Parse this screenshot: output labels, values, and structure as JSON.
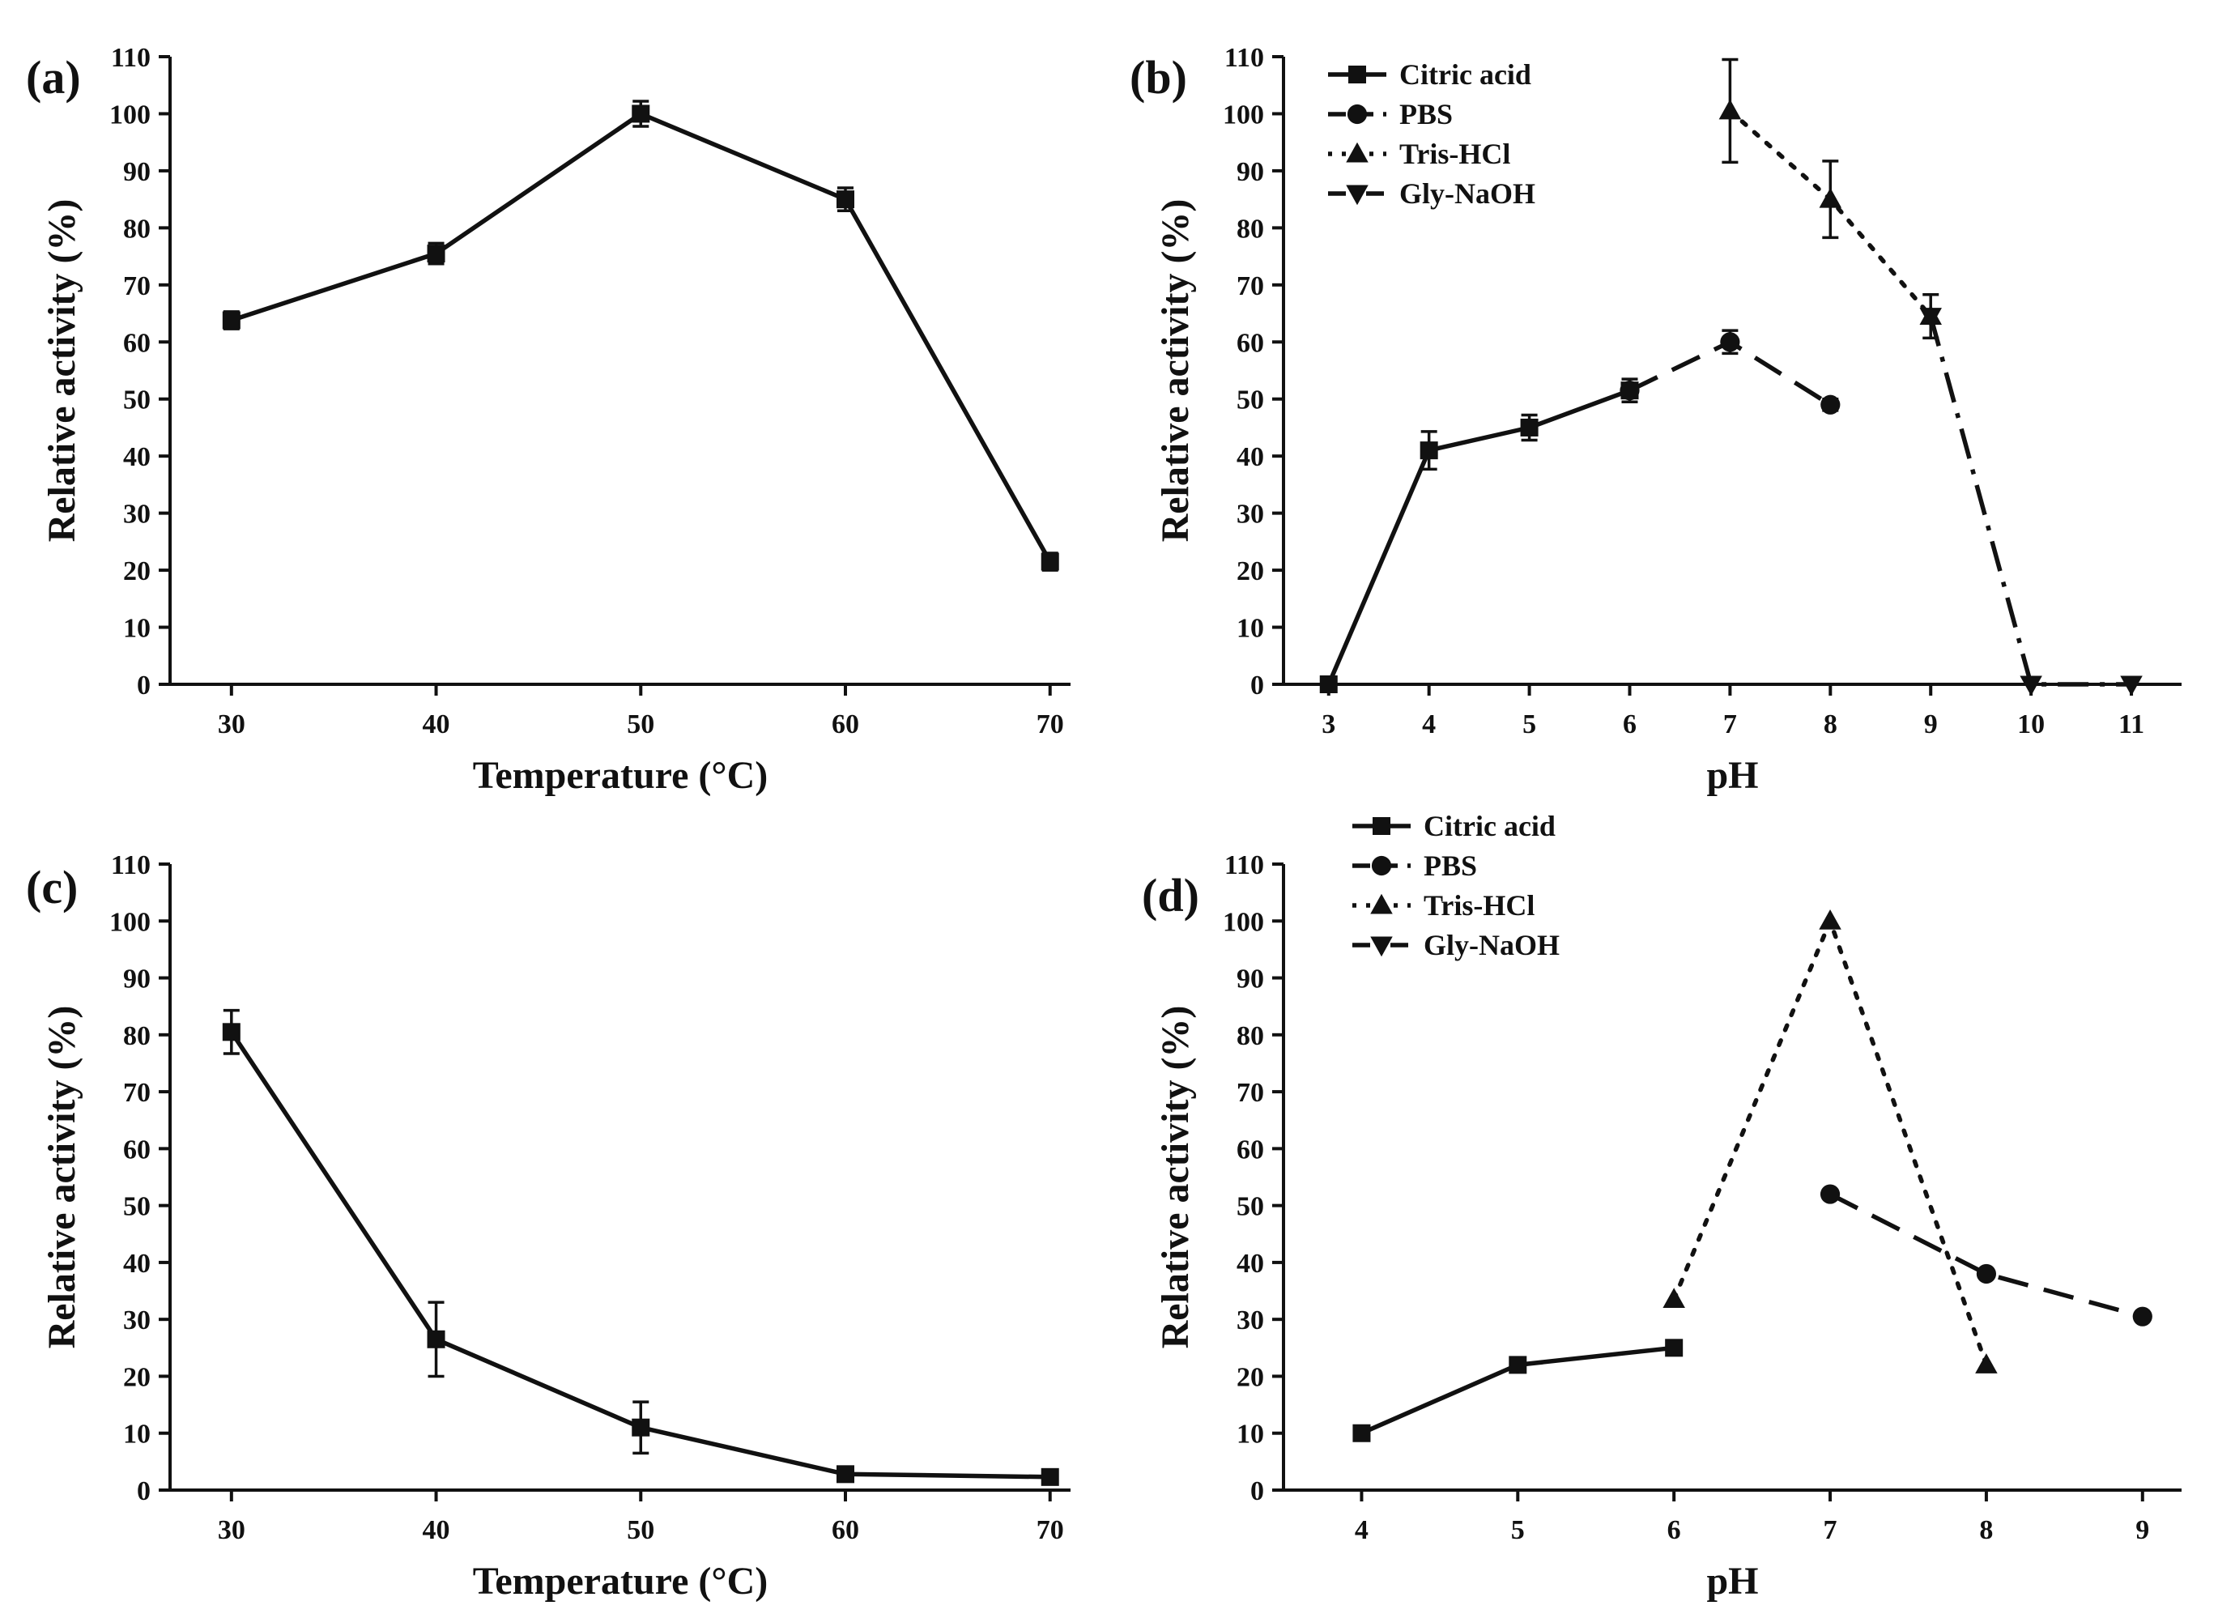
{
  "chart_data": [
    {
      "panel": "(a)",
      "type": "line",
      "xlabel": "Temperature (°C)",
      "ylabel": "Relative activity (%)",
      "xlim": [
        27,
        71
      ],
      "ylim": [
        0,
        110
      ],
      "xticks": [
        30,
        40,
        50,
        60,
        70
      ],
      "yticks": [
        0,
        10,
        20,
        30,
        40,
        50,
        60,
        70,
        80,
        90,
        100,
        110
      ],
      "grid": false,
      "legend": [],
      "series": [
        {
          "marker": "square",
          "dash": "solid",
          "points": [
            [
              30,
              63.8,
              1.5
            ],
            [
              40,
              75.5,
              1.8
            ],
            [
              50,
              100,
              2.2
            ],
            [
              60,
              85,
              2.0
            ],
            [
              70,
              21.5,
              1.5
            ]
          ]
        }
      ]
    },
    {
      "panel": "(b)",
      "type": "line",
      "xlabel": "pH",
      "ylabel": "Relative activity (%)",
      "xlim": [
        2.55,
        11.5
      ],
      "ylim": [
        0,
        110
      ],
      "xticks": [
        3,
        4,
        5,
        6,
        7,
        8,
        9,
        10,
        11
      ],
      "yticks": [
        0,
        10,
        20,
        30,
        40,
        50,
        60,
        70,
        80,
        90,
        100,
        110
      ],
      "grid": false,
      "legend_position": "top-left",
      "series": [
        {
          "name": "Citric acid",
          "marker": "square",
          "dash": "solid",
          "points": [
            [
              3,
              0,
              0
            ],
            [
              4,
              41,
              3.3
            ],
            [
              5,
              45,
              2.2
            ],
            [
              6,
              51.5,
              2.0
            ]
          ]
        },
        {
          "name": "PBS",
          "marker": "circle",
          "dash": "dash",
          "points": [
            [
              6,
              51.5,
              0
            ],
            [
              7,
              60,
              2.0
            ],
            [
              8,
              49,
              1.0
            ]
          ]
        },
        {
          "name": "Tris-HCl",
          "marker": "triangle-up",
          "dash": "dot",
          "points": [
            [
              7,
              100.5,
              9.0
            ],
            [
              8,
              85,
              6.7
            ],
            [
              9,
              64.5,
              3.8
            ]
          ]
        },
        {
          "name": "Gly-NaOH",
          "marker": "triangle-down",
          "dash": "dashdot",
          "points": [
            [
              9,
              64.5,
              0
            ],
            [
              10,
              0,
              0
            ],
            [
              11,
              0,
              0
            ]
          ]
        }
      ]
    },
    {
      "panel": "(c)",
      "type": "line",
      "xlabel": "Temperature (°C)",
      "ylabel": "Relative activity (%)",
      "xlim": [
        27,
        71
      ],
      "ylim": [
        0,
        110
      ],
      "xticks": [
        30,
        40,
        50,
        60,
        70
      ],
      "yticks": [
        0,
        10,
        20,
        30,
        40,
        50,
        60,
        70,
        80,
        90,
        100,
        110
      ],
      "grid": false,
      "legend": [],
      "series": [
        {
          "marker": "square",
          "dash": "solid",
          "points": [
            [
              30,
              80.5,
              3.8
            ],
            [
              40,
              26.5,
              6.5
            ],
            [
              50,
              11,
              4.5
            ],
            [
              60,
              2.8,
              1.0
            ],
            [
              70,
              2.3,
              1.0
            ]
          ]
        }
      ]
    },
    {
      "panel": "(d)",
      "type": "line",
      "xlabel": "pH",
      "ylabel": "Relative activity (%)",
      "xlim": [
        3.5,
        9.25
      ],
      "ylim": [
        0,
        110
      ],
      "xticks": [
        4,
        5,
        6,
        7,
        8,
        9
      ],
      "yticks": [
        0,
        10,
        20,
        30,
        40,
        50,
        60,
        70,
        80,
        90,
        100,
        110
      ],
      "grid": false,
      "legend_position": "above plot, left",
      "series": [
        {
          "name": "Citric acid",
          "marker": "square",
          "dash": "solid",
          "points": [
            [
              4,
              10,
              0.8
            ],
            [
              5,
              22,
              0.8
            ],
            [
              6,
              25,
              0.8
            ]
          ]
        },
        {
          "name": "PBS",
          "marker": "circle",
          "dash": "dash",
          "points": [
            [
              7,
              52,
              0
            ],
            [
              8,
              38,
              0
            ],
            [
              9,
              30.5,
              0
            ]
          ]
        },
        {
          "name": "Tris-HCl",
          "marker": "triangle-up",
          "dash": "dot",
          "points": [
            [
              6,
              33.5,
              0
            ],
            [
              7,
              100,
              0
            ],
            [
              8,
              22,
              0
            ]
          ]
        },
        {
          "name": "Gly-NaOH",
          "marker": "triangle-down",
          "dash": "dashdot",
          "points": []
        }
      ]
    }
  ]
}
